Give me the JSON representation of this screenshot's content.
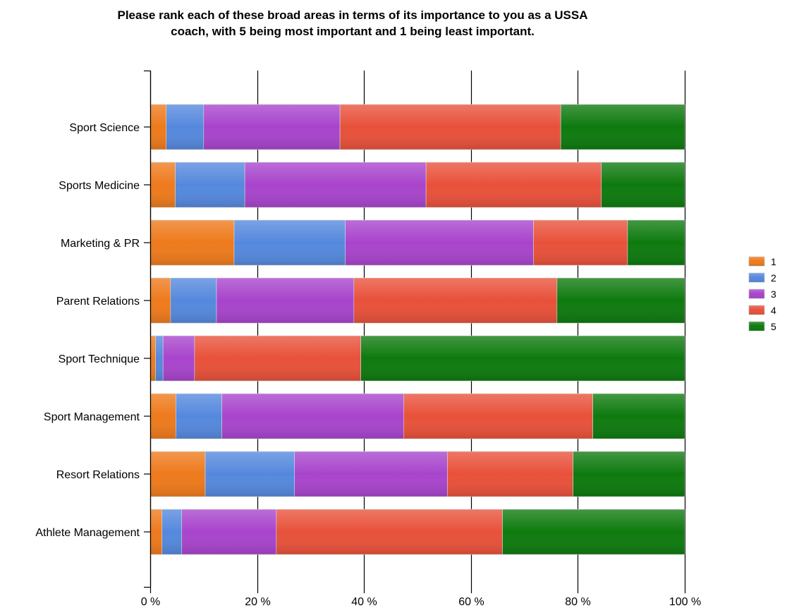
{
  "chart_data": {
    "type": "bar",
    "orientation": "horizontal",
    "stacked": true,
    "percent_stacked": true,
    "title_lines": [
      "Please rank each of these broad areas in terms of its importance to you as a USSA",
      "coach, with 5 being most important and 1 being least important."
    ],
    "categories": [
      "Sport Science",
      "Sports Medicine",
      "Marketing & PR",
      "Parent Relations",
      "Sport Technique",
      "Sport Management",
      "Resort Relations",
      "Athlete Management"
    ],
    "series": [
      {
        "name": "1",
        "color": "#ee7a1c",
        "values": [
          3.0,
          4.7,
          15.7,
          3.8,
          1.0,
          4.8,
          10.3,
          2.2
        ]
      },
      {
        "name": "2",
        "color": "#5588dd",
        "values": [
          7.0,
          13.0,
          20.8,
          8.6,
          1.4,
          8.6,
          16.7,
          3.7
        ]
      },
      {
        "name": "3",
        "color": "#a844cc",
        "values": [
          25.5,
          33.9,
          35.2,
          25.7,
          5.9,
          34.0,
          28.6,
          17.7
        ]
      },
      {
        "name": "4",
        "color": "#e8513a",
        "values": [
          41.3,
          32.8,
          17.6,
          38.0,
          31.1,
          35.4,
          23.5,
          42.3
        ]
      },
      {
        "name": "5",
        "color": "#0e7a0e",
        "values": [
          23.2,
          15.6,
          10.7,
          23.9,
          60.6,
          17.2,
          20.9,
          34.1
        ]
      }
    ],
    "xlim": [
      0,
      100
    ],
    "xticks": [
      "0 %",
      "20 %",
      "40 %",
      "60 %",
      "80 %",
      "100 %"
    ],
    "xlabel": "",
    "ylabel": "",
    "grid": true,
    "legend_position": "right"
  }
}
